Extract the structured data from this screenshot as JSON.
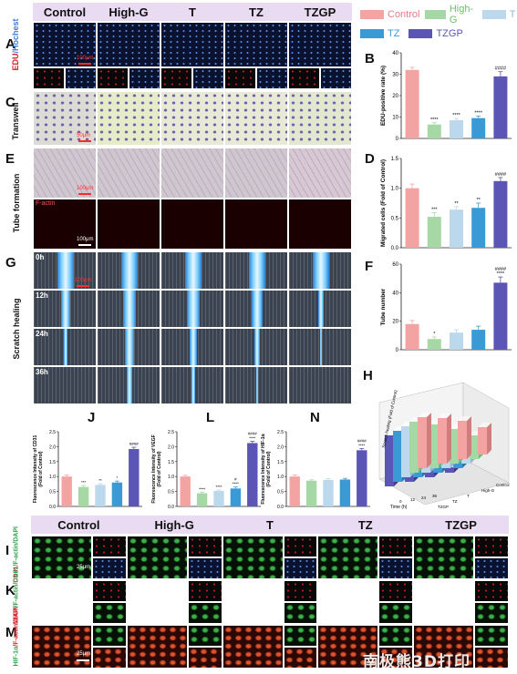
{
  "groups": [
    "Control",
    "High-G",
    "T",
    "TZ",
    "TZGP"
  ],
  "colors": {
    "Control": "#f4a3a3",
    "High-G": "#a6d8a6",
    "T": "#bcd8ec",
    "TZ": "#3a9ad6",
    "TZGP": "#5b55b5"
  },
  "panels": {
    "A": {
      "letter": "A",
      "label_red": "EDU",
      "label_blue": "/Hochest",
      "scale": "100μm"
    },
    "C": {
      "letter": "C",
      "label": "Transwell",
      "scale": "50μm"
    },
    "E": {
      "letter": "E",
      "label": "Tube formation",
      "factin": "F-actin",
      "scale1": "100μm",
      "scale2": "100μm"
    },
    "G": {
      "letter": "G",
      "label": "Scratch healing",
      "times": [
        "0h",
        "12h",
        "24h",
        "36h"
      ],
      "scale": "100μm"
    },
    "I": {
      "letter": "I",
      "label_red": "CD31",
      "label_rest": "/F-actin/DAPI",
      "scale": "25μm"
    },
    "K": {
      "letter": "K",
      "label_red": "VEGF",
      "label_rest": "/F-actin/DAPI"
    },
    "M": {
      "letter": "M",
      "label_green": "HIF-1α",
      "label_rest": "/F-actin/DAPI",
      "scale": "25μm"
    },
    "H": {
      "letter": "H",
      "zlabel": "Scratch healing (Fold of Control)",
      "xlabel": "Time (h)",
      "x_ticks": [
        "0",
        "12",
        "24",
        "36"
      ],
      "groups_axis": [
        "TZGP",
        "TZ",
        "T",
        "High-G",
        "Control"
      ]
    }
  },
  "watermark": "南极熊3D打印",
  "chart_data": [
    {
      "id": "B",
      "type": "bar",
      "title": "B",
      "ylabel": "EDU-positive rate (%)",
      "categories": [
        "Control",
        "High-G",
        "T",
        "TZ",
        "TZGP"
      ],
      "values": [
        32,
        6.5,
        8.5,
        9.5,
        29
      ],
      "errors": [
        1.2,
        0.8,
        0.8,
        1.0,
        2.2
      ],
      "ylim": [
        0,
        40
      ],
      "yticks": [
        0,
        10,
        20,
        30,
        40
      ],
      "annotations": [
        "",
        "****",
        "****",
        "****",
        "####"
      ]
    },
    {
      "id": "D",
      "type": "bar",
      "title": "D",
      "ylabel": "Migrated cells (Fold of Control)",
      "categories": [
        "Control",
        "High-G",
        "T",
        "TZ",
        "TZGP"
      ],
      "values": [
        1.0,
        0.52,
        0.64,
        0.67,
        1.12
      ],
      "errors": [
        0.07,
        0.07,
        0.05,
        0.08,
        0.06
      ],
      "ylim": [
        0,
        1.5
      ],
      "yticks": [
        0.0,
        0.5,
        1.0,
        1.5
      ],
      "annotations": [
        "",
        "***",
        "**",
        "**",
        "####"
      ]
    },
    {
      "id": "F",
      "type": "bar",
      "title": "F",
      "ylabel": "Tube number",
      "categories": [
        "Control",
        "High-G",
        "T",
        "TZ",
        "TZGP"
      ],
      "values": [
        18,
        7.5,
        12,
        14,
        47
      ],
      "errors": [
        2.5,
        1.5,
        2.0,
        2.5,
        4.0
      ],
      "ylim": [
        0,
        60
      ],
      "yticks": [
        0,
        20,
        40,
        60
      ],
      "annotations": [
        "",
        "*",
        "",
        "",
        "####\n****"
      ]
    },
    {
      "id": "J",
      "type": "bar",
      "title": "J",
      "ylabel": "Fluorescence Intensity of CD31 (Fold of Control)",
      "categories": [
        "Control",
        "High-G",
        "T",
        "TZ",
        "TZGP"
      ],
      "values": [
        1.0,
        0.65,
        0.72,
        0.8,
        1.92
      ],
      "errors": [
        0.05,
        0.05,
        0.04,
        0.05,
        0.06
      ],
      "ylim": [
        0,
        2.5
      ],
      "yticks": [
        0.0,
        0.5,
        1.0,
        1.5,
        2.0,
        2.5
      ],
      "annotations": [
        "",
        "***",
        "**",
        "*",
        "####"
      ]
    },
    {
      "id": "L",
      "type": "bar",
      "title": "L",
      "ylabel": "Fluorescence Intensity of VEGF (Fold of Control)",
      "categories": [
        "Control",
        "High-G",
        "T",
        "TZ",
        "TZGP"
      ],
      "values": [
        1.0,
        0.44,
        0.52,
        0.6,
        2.12
      ],
      "errors": [
        0.04,
        0.04,
        0.03,
        0.05,
        0.06
      ],
      "ylim": [
        0,
        2.5
      ],
      "yticks": [
        0.0,
        0.5,
        1.0,
        1.5,
        2.0,
        2.5
      ],
      "annotations": [
        "",
        "****",
        "****",
        "#\n****",
        "####\n****"
      ]
    },
    {
      "id": "N",
      "type": "bar",
      "title": "N",
      "ylabel": "Fluorescence Intensity of HIF-1α (Fold of Control)",
      "categories": [
        "Control",
        "High-G",
        "T",
        "TZ",
        "TZGP"
      ],
      "values": [
        1.0,
        0.86,
        0.89,
        0.9,
        1.88
      ],
      "errors": [
        0.05,
        0.03,
        0.04,
        0.04,
        0.06
      ],
      "ylim": [
        0,
        2.5
      ],
      "yticks": [
        0.0,
        0.5,
        1.0,
        1.5,
        2.0,
        2.5
      ],
      "annotations": [
        "",
        "",
        "",
        "",
        "####\n****"
      ]
    }
  ]
}
